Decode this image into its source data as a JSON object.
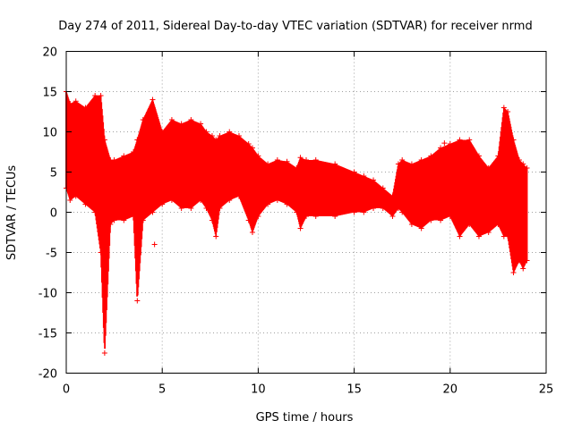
{
  "chart_data": {
    "type": "scatter",
    "title": "Day 274 of 2011, Sidereal Day-to-day VTEC variation (SDTVAR) for receiver nrmd",
    "xlabel": "GPS time / hours",
    "ylabel": "SDTVAR / TECUs",
    "xlim": [
      0,
      25
    ],
    "ylim": [
      -20,
      20
    ],
    "xticks": [
      0,
      5,
      10,
      15,
      20,
      25
    ],
    "yticks": [
      -20,
      -15,
      -10,
      -5,
      0,
      5,
      10,
      15,
      20
    ],
    "grid": true,
    "marker": "+",
    "color": "#ff0000",
    "series": [
      {
        "name": "SDTVAR",
        "envelope_x": [
          0.0,
          0.2,
          0.5,
          1.0,
          1.5,
          1.8,
          2.0,
          2.3,
          2.5,
          3.0,
          3.5,
          3.7,
          4.0,
          4.5,
          5.0,
          5.5,
          6.0,
          6.5,
          7.0,
          7.3,
          7.6,
          7.8,
          8.0,
          8.5,
          9.0,
          9.5,
          9.7,
          10.0,
          10.5,
          11.0,
          11.5,
          12.0,
          12.2,
          12.5,
          13.0,
          14.0,
          15.0,
          15.5,
          16.0,
          16.5,
          17.0,
          17.3,
          17.5,
          18.0,
          18.5,
          19.0,
          19.5,
          20.0,
          20.5,
          21.0,
          21.5,
          22.0,
          22.5,
          22.8,
          23.0,
          23.3,
          23.6,
          23.8,
          24.0
        ],
        "envelope_max": [
          15.0,
          13.5,
          13.8,
          13.0,
          14.5,
          14.5,
          9.0,
          6.5,
          6.5,
          7.0,
          7.5,
          9.0,
          11.5,
          14.0,
          10.0,
          11.5,
          11.0,
          11.5,
          11.0,
          10.0,
          9.5,
          9.0,
          9.5,
          10.0,
          9.5,
          8.5,
          8.0,
          7.0,
          6.0,
          6.5,
          6.3,
          5.5,
          6.8,
          6.5,
          6.5,
          6.0,
          5.0,
          4.5,
          4.0,
          3.0,
          2.0,
          6.0,
          6.5,
          6.0,
          6.5,
          7.0,
          8.0,
          8.5,
          9.0,
          9.0,
          7.0,
          5.5,
          7.0,
          13.0,
          12.5,
          9.0,
          6.5,
          6.0,
          5.5
        ],
        "envelope_min": [
          3.0,
          1.5,
          2.0,
          1.0,
          0.0,
          -5.0,
          -17.5,
          -1.5,
          -1.0,
          -1.0,
          -0.5,
          -11.0,
          -1.0,
          0.0,
          1.0,
          1.5,
          0.5,
          0.5,
          1.5,
          0.5,
          -1.0,
          -3.0,
          0.5,
          1.5,
          2.0,
          -1.0,
          -2.5,
          -0.5,
          1.0,
          1.5,
          1.0,
          0.0,
          -2.0,
          -0.5,
          -0.5,
          -0.5,
          0.0,
          0.0,
          0.5,
          0.5,
          -0.5,
          0.5,
          0.0,
          -1.5,
          -2.0,
          -1.0,
          -1.0,
          -0.5,
          -3.0,
          -1.5,
          -3.0,
          -2.5,
          -1.5,
          -3.0,
          -3.0,
          -7.5,
          -6.0,
          -7.0,
          -6.0
        ],
        "outliers": [
          {
            "x": 4.6,
            "y": -4.0
          },
          {
            "x": 19.7,
            "y": 8.6
          }
        ]
      }
    ]
  }
}
